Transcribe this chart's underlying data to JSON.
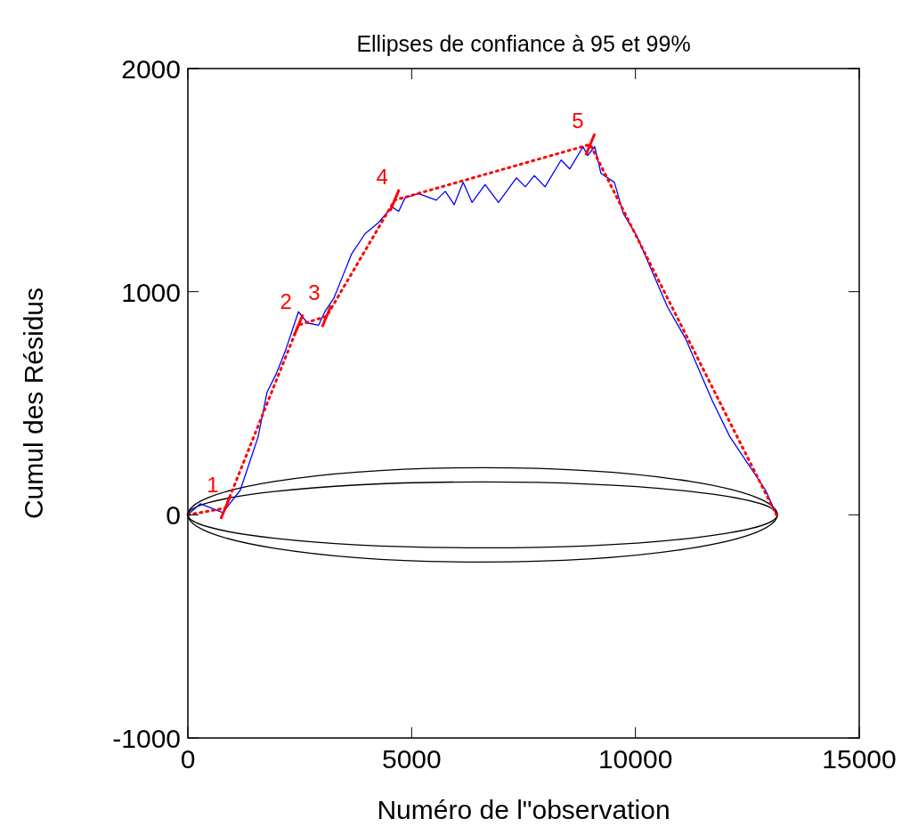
{
  "chart_data": {
    "type": "line",
    "title": "Ellipses de confiance à 95 et 99%",
    "xlabel": "Numéro de l\"observation",
    "ylabel": "Cumul des Résidus",
    "xlim": [
      0,
      15000
    ],
    "ylim": [
      -1000,
      2000
    ],
    "xticks": [
      0,
      5000,
      10000,
      15000
    ],
    "yticks": [
      -1000,
      0,
      1000,
      2000
    ],
    "grid": false,
    "series": [
      {
        "color": "#0000ff",
        "line_style": "solid",
        "x": [
          0,
          280,
          780,
          935,
          1170,
          1370,
          1570,
          1770,
          1970,
          2170,
          2470,
          2670,
          2920,
          3060,
          3260,
          3460,
          3660,
          3960,
          4260,
          4560,
          4710,
          4850,
          5150,
          5550,
          5750,
          5950,
          6150,
          6350,
          6640,
          6940,
          7340,
          7540,
          7740,
          7980,
          8340,
          8530,
          8830,
          8930,
          9090,
          9230,
          9530,
          9730,
          10030,
          10330,
          10720,
          11120,
          11420,
          11720,
          12110,
          12510,
          12910,
          13150
        ],
        "values": [
          0,
          50,
          10,
          50,
          110,
          230,
          350,
          550,
          630,
          730,
          910,
          860,
          850,
          910,
          970,
          1070,
          1170,
          1260,
          1310,
          1380,
          1360,
          1420,
          1440,
          1410,
          1450,
          1390,
          1490,
          1400,
          1480,
          1400,
          1510,
          1470,
          1520,
          1470,
          1590,
          1550,
          1650,
          1610,
          1650,
          1530,
          1490,
          1350,
          1250,
          1110,
          930,
          790,
          650,
          510,
          350,
          230,
          110,
          0
        ]
      },
      {
        "color": "#ff0000",
        "line_style": "dotted",
        "x": [
          0,
          835,
          2470,
          3100,
          4620,
          8990,
          13150
        ],
        "values": [
          0,
          30,
          850,
          890,
          1410,
          1660,
          0
        ]
      }
    ],
    "annotations": [
      {
        "text": "1",
        "x": 835,
        "y": 30
      },
      {
        "text": "2",
        "x": 2470,
        "y": 850
      },
      {
        "text": "3",
        "x": 3100,
        "y": 890
      },
      {
        "text": "4",
        "x": 4620,
        "y": 1410
      },
      {
        "text": "5",
        "x": 8990,
        "y": 1660
      }
    ]
  }
}
